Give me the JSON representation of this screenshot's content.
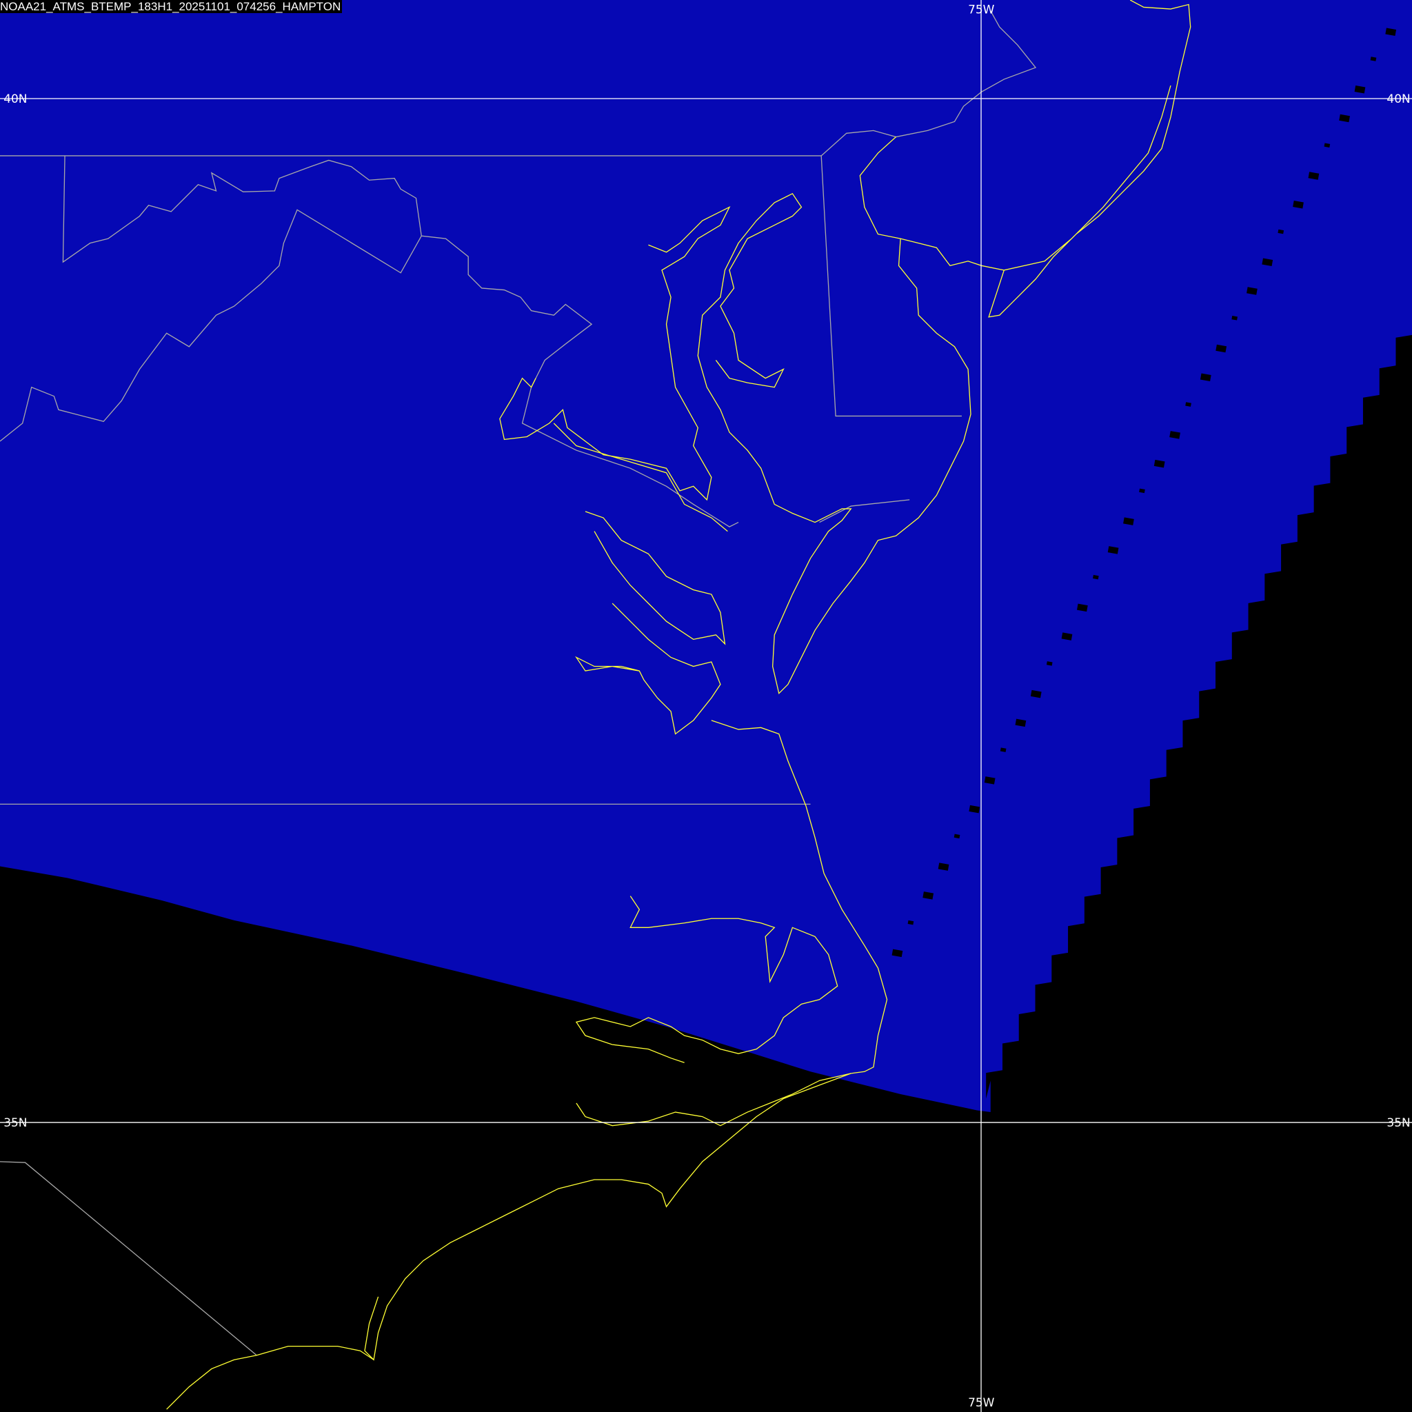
{
  "title": "NOAA21_ATMS_BTEMP_183H1_20251101_074256_HAMPTON",
  "grid": {
    "lat_labels": [
      "40N",
      "35N"
    ],
    "lon_labels": [
      "75W"
    ]
  },
  "colors": {
    "swath": "#0608b4",
    "background": "#000000",
    "coastline": "#ffff33",
    "borders": "#a8a8a8",
    "graticule": "#ffffff"
  }
}
